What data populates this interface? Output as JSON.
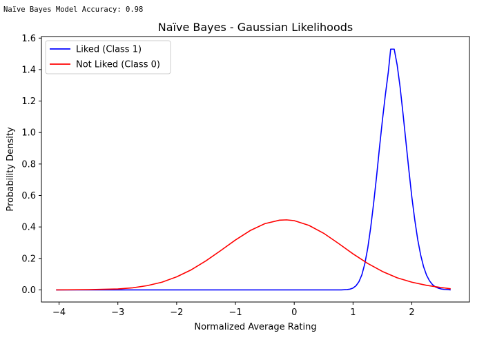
{
  "console_output": "Naïve Bayes Model Accuracy: 0.98",
  "chart_data": {
    "type": "line",
    "title": "Naïve Bayes - Gaussian Likelihoods",
    "xlabel": "Normalized Average Rating",
    "ylabel": "Probability Density",
    "xlim": [
      -4.3,
      2.98
    ],
    "ylim": [
      -0.077,
      1.61
    ],
    "xticks": [
      -4,
      -3,
      -2,
      -1,
      0,
      1,
      2
    ],
    "yticks": [
      0.0,
      0.2,
      0.4,
      0.6,
      0.8,
      1.0,
      1.2,
      1.4,
      1.6
    ],
    "xtick_labels": [
      "−4",
      "−3",
      "−2",
      "−1",
      "0",
      "1",
      "2"
    ],
    "ytick_labels": [
      "0.0",
      "0.2",
      "0.4",
      "0.6",
      "0.8",
      "1.0",
      "1.2",
      "1.4",
      "1.6"
    ],
    "grid": false,
    "legend_position": "upper-left",
    "series": [
      {
        "name": "Liked (Class 1)",
        "color": "#0000ff",
        "x": [
          -4.05,
          -3.0,
          -2.0,
          -1.0,
          0.0,
          0.6,
          0.8,
          0.9,
          0.95,
          1.0,
          1.05,
          1.1,
          1.15,
          1.2,
          1.25,
          1.3,
          1.35,
          1.4,
          1.45,
          1.5,
          1.55,
          1.6,
          1.64,
          1.7,
          1.75,
          1.8,
          1.85,
          1.9,
          1.95,
          2.0,
          2.05,
          2.1,
          2.15,
          2.2,
          2.25,
          2.3,
          2.35,
          2.4,
          2.45,
          2.5,
          2.55,
          2.6,
          2.66
        ],
        "y": [
          0.0,
          0.0,
          0.0,
          0.0,
          0.0,
          0.0,
          0.0,
          0.002,
          0.005,
          0.012,
          0.026,
          0.052,
          0.096,
          0.166,
          0.265,
          0.395,
          0.55,
          0.72,
          0.905,
          1.08,
          1.24,
          1.385,
          1.53,
          1.53,
          1.43,
          1.29,
          1.12,
          0.94,
          0.76,
          0.59,
          0.445,
          0.32,
          0.222,
          0.147,
          0.094,
          0.058,
          0.034,
          0.019,
          0.011,
          0.006,
          0.003,
          0.002,
          0.0
        ]
      },
      {
        "name": "Not Liked (Class 0)",
        "color": "#ff0000",
        "x": [
          -4.05,
          -3.5,
          -3.0,
          -2.75,
          -2.5,
          -2.25,
          -2.0,
          -1.75,
          -1.5,
          -1.25,
          -1.0,
          -0.75,
          -0.5,
          -0.25,
          -0.13,
          0.0,
          0.25,
          0.5,
          0.75,
          1.0,
          1.25,
          1.5,
          1.75,
          2.0,
          2.25,
          2.5,
          2.66
        ],
        "y": [
          0.0,
          0.0015,
          0.006,
          0.013,
          0.027,
          0.049,
          0.083,
          0.128,
          0.185,
          0.25,
          0.317,
          0.377,
          0.421,
          0.443,
          0.445,
          0.44,
          0.41,
          0.36,
          0.296,
          0.229,
          0.168,
          0.117,
          0.077,
          0.049,
          0.029,
          0.015,
          0.007
        ]
      }
    ]
  }
}
